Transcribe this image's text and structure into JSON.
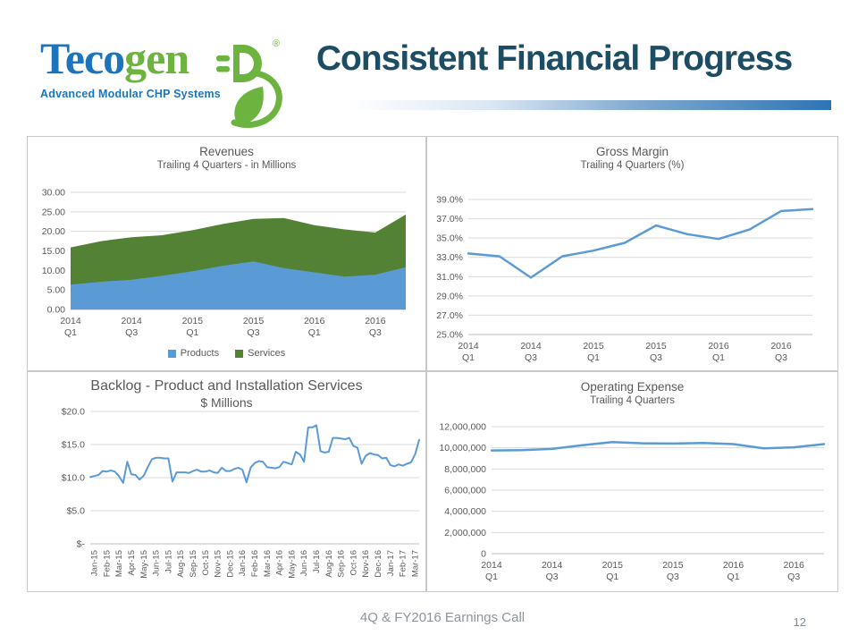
{
  "slide": {
    "title": "Consistent Financial Progress",
    "footer": "4Q & FY2016  Earnings Call",
    "page_number": "12",
    "logo": {
      "brand_part1": "Teco",
      "brand_part2": "gen",
      "registered_mark": "®",
      "tagline": "Advanced Modular CHP Systems"
    },
    "colors": {
      "title_color": "#1C4D63",
      "bar_blue": "#2E74B5",
      "logo_blue": "#1C75BC",
      "logo_green": "#6CB33F",
      "accent_blue": "#5B9BD5",
      "accent_green": "#548235",
      "grid_line": "#D9D9D9",
      "axis_line": "#BFBFBF",
      "axis_text": "#595959",
      "panel_border": "#C9C9C9",
      "footer_text": "#8A95A0"
    }
  },
  "chart_data": [
    {
      "id": "revenues",
      "type": "area",
      "stacked": true,
      "title": "Revenues",
      "subtitle": "Trailing 4 Quarters - in Millions",
      "ylim": [
        0,
        30
      ],
      "y_tick_values": [
        30,
        25,
        20,
        15,
        10,
        5,
        0
      ],
      "y_tick_labels": [
        "30.00",
        "25.00",
        "20.00",
        "15.00",
        "10.00",
        "5.00",
        "0.00"
      ],
      "x_tick_indices": [
        0,
        2,
        4,
        6,
        8,
        10
      ],
      "x_tick_labels": [
        [
          "2014",
          "Q1"
        ],
        [
          "2014",
          "Q3"
        ],
        [
          "2015",
          "Q1"
        ],
        [
          "2015",
          "Q3"
        ],
        [
          "2016",
          "Q1"
        ],
        [
          "2016",
          "Q3"
        ]
      ],
      "series": [
        {
          "name": "Products",
          "color": "#5B9BD5",
          "values": [
            6.4,
            7.1,
            7.6,
            8.6,
            9.8,
            11.2,
            12.3,
            10.6,
            9.5,
            8.4,
            8.9,
            10.8
          ]
        },
        {
          "name": "Services",
          "color": "#548235",
          "values": [
            9.5,
            10.4,
            10.9,
            10.4,
            10.5,
            10.7,
            10.9,
            12.8,
            12.1,
            12.1,
            10.8,
            13.5
          ]
        }
      ],
      "legend": true,
      "legend_position": "bottom"
    },
    {
      "id": "gross-margin",
      "type": "line",
      "title": "Gross Margin",
      "subtitle": "Trailing 4 Quarters (%)",
      "color": "#5B9BD5",
      "line_width": 2.5,
      "ylim": [
        25,
        39
      ],
      "y_tick_values": [
        39,
        37,
        35,
        33,
        31,
        29,
        27,
        25
      ],
      "y_tick_labels": [
        "39.0%",
        "37.0%",
        "35.0%",
        "33.0%",
        "31.0%",
        "29.0%",
        "27.0%",
        "25.0%"
      ],
      "x_tick_indices": [
        0,
        2,
        4,
        6,
        8,
        10
      ],
      "x_tick_labels": [
        [
          "2014",
          "Q1"
        ],
        [
          "2014",
          "Q3"
        ],
        [
          "2015",
          "Q1"
        ],
        [
          "2015",
          "Q3"
        ],
        [
          "2016",
          "Q1"
        ],
        [
          "2016",
          "Q3"
        ]
      ],
      "values": [
        33.4,
        33.1,
        30.9,
        33.1,
        33.7,
        34.5,
        36.3,
        35.4,
        34.9,
        35.9,
        37.8,
        38.0
      ]
    },
    {
      "id": "backlog",
      "type": "line",
      "title": "Backlog - Product and Installation Services",
      "subtitle": "$ Millions",
      "color": "#5B9BD5",
      "line_width": 2,
      "ylim": [
        0,
        20
      ],
      "y_tick_values": [
        20,
        15,
        10,
        5,
        0
      ],
      "y_tick_labels": [
        "$20.0",
        "$15.0",
        "$10.0",
        "$5.0",
        "$-"
      ],
      "x_rotate": true,
      "x_tick_labels": [
        "Jan-15",
        "Feb-15",
        "Mar-15",
        "Apr-15",
        "May-15",
        "Jun-15",
        "Jul-15",
        "Aug-15",
        "Sep-15",
        "Oct-15",
        "Nov-15",
        "Dec-15",
        "Jan-16",
        "Feb-16",
        "Mar-16",
        "Apr-16",
        "May-16",
        "Jun-16",
        "Jul-16",
        "Aug-16",
        "Sep-16",
        "Oct-16",
        "Nov-16",
        "Dec-16",
        "Jan-17",
        "Feb-17",
        "Mar-17"
      ],
      "values": [
        10.1,
        10.25,
        10.4,
        11.0,
        10.9,
        11.1,
        10.9,
        10.2,
        9.2,
        12.4,
        10.5,
        10.4,
        9.7,
        10.3,
        11.6,
        12.8,
        13.0,
        13.0,
        12.9,
        12.9,
        9.4,
        10.8,
        10.8,
        10.8,
        10.7,
        11.0,
        11.2,
        10.9,
        10.9,
        11.1,
        10.8,
        10.7,
        11.5,
        11.0,
        11.0,
        11.3,
        11.5,
        11.2,
        9.3,
        11.5,
        12.2,
        12.5,
        12.4,
        11.6,
        11.5,
        11.4,
        11.6,
        12.4,
        12.2,
        12.0,
        13.9,
        13.5,
        12.4,
        17.6,
        17.6,
        17.9,
        14.0,
        13.8,
        13.9,
        16.0,
        16.0,
        15.9,
        15.8,
        16.0,
        14.8,
        14.5,
        12.1,
        13.3,
        13.7,
        13.5,
        13.4,
        12.9,
        13.0,
        11.9,
        11.7,
        12.0,
        11.8,
        12.1,
        12.3,
        13.5,
        15.7
      ]
    },
    {
      "id": "operating-expense",
      "type": "line",
      "title": "Operating Expense",
      "subtitle": "Trailing 4 Quarters",
      "color": "#5B9BD5",
      "line_width": 2.5,
      "ylim": [
        0,
        12000000
      ],
      "y_tick_values": [
        12000000,
        10000000,
        8000000,
        6000000,
        4000000,
        2000000,
        0
      ],
      "y_tick_labels": [
        "12,000,000",
        "10,000,000",
        "8,000,000",
        "6,000,000",
        "4,000,000",
        "2,000,000",
        "0"
      ],
      "x_tick_indices": [
        0,
        2,
        4,
        6,
        8,
        10
      ],
      "x_tick_labels": [
        [
          "2014",
          "Q1"
        ],
        [
          "2014",
          "Q3"
        ],
        [
          "2015",
          "Q1"
        ],
        [
          "2015",
          "Q3"
        ],
        [
          "2016",
          "Q1"
        ],
        [
          "2016",
          "Q3"
        ]
      ],
      "values": [
        9750000,
        9780000,
        9900000,
        10250000,
        10550000,
        10430000,
        10400000,
        10450000,
        10350000,
        9950000,
        10050000,
        10350000
      ]
    }
  ]
}
